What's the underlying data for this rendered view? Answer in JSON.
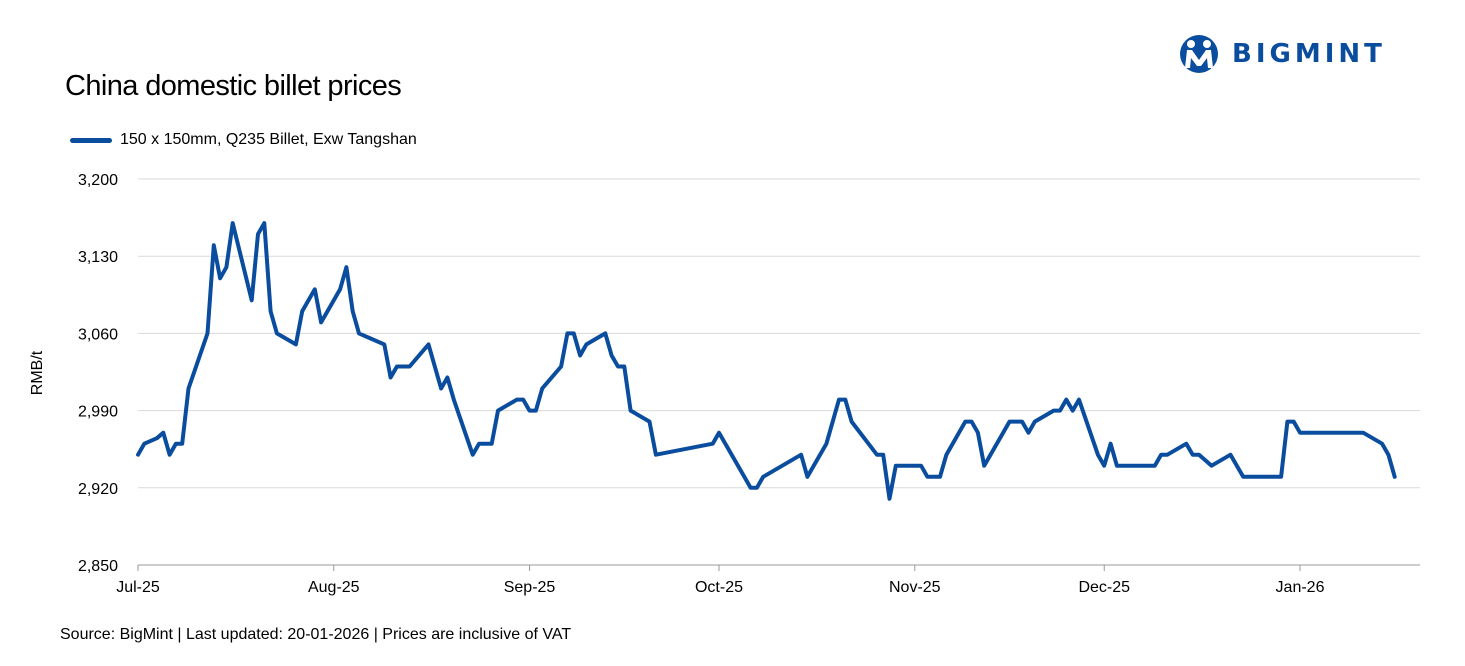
{
  "logo": {
    "text": "BIGMINT",
    "color": "#0a4d9e"
  },
  "source": "Source: BigMint | Last updated: 20-01-2026 | Prices are inclusive of VAT",
  "chart_data": {
    "type": "line",
    "title": "China domestic billet prices",
    "ylabel": "RMB/t",
    "xlabel": "",
    "ylim": [
      2850,
      3200
    ],
    "y_ticks": [
      2850,
      2920,
      2990,
      3060,
      3130,
      3200
    ],
    "y_tick_labels": [
      "2,850",
      "2,920",
      "2,990",
      "3,060",
      "3,130",
      "3,200"
    ],
    "x_ticks": [
      {
        "label": "Jul-25",
        "date": "2025-07-01"
      },
      {
        "label": "Aug-25",
        "date": "2025-08-01"
      },
      {
        "label": "Sep-25",
        "date": "2025-09-01"
      },
      {
        "label": "Oct-25",
        "date": "2025-10-01"
      },
      {
        "label": "Nov-25",
        "date": "2025-11-01"
      },
      {
        "label": "Dec-25",
        "date": "2025-12-01"
      },
      {
        "label": "Jan-26",
        "date": "2026-01-01"
      }
    ],
    "x_range": [
      "2025-07-01",
      "2026-01-20"
    ],
    "grid": "horizontal",
    "legend_position": "top-left",
    "series": [
      {
        "name": "150 x 150mm, Q235 Billet, Exw Tangshan",
        "color": "#0a4d9e",
        "points": [
          [
            "2025-07-01",
            2950
          ],
          [
            "2025-07-02",
            2960
          ],
          [
            "2025-07-04",
            2965
          ],
          [
            "2025-07-05",
            2970
          ],
          [
            "2025-07-06",
            2950
          ],
          [
            "2025-07-07",
            2960
          ],
          [
            "2025-07-08",
            2960
          ],
          [
            "2025-07-09",
            3010
          ],
          [
            "2025-07-12",
            3060
          ],
          [
            "2025-07-13",
            3140
          ],
          [
            "2025-07-14",
            3110
          ],
          [
            "2025-07-15",
            3120
          ],
          [
            "2025-07-16",
            3160
          ],
          [
            "2025-07-19",
            3090
          ],
          [
            "2025-07-20",
            3150
          ],
          [
            "2025-07-21",
            3160
          ],
          [
            "2025-07-22",
            3080
          ],
          [
            "2025-07-23",
            3060
          ],
          [
            "2025-07-26",
            3050
          ],
          [
            "2025-07-27",
            3080
          ],
          [
            "2025-07-29",
            3100
          ],
          [
            "2025-07-30",
            3070
          ],
          [
            "2025-08-01",
            3090
          ],
          [
            "2025-08-02",
            3100
          ],
          [
            "2025-08-03",
            3120
          ],
          [
            "2025-08-04",
            3080
          ],
          [
            "2025-08-05",
            3060
          ],
          [
            "2025-08-09",
            3050
          ],
          [
            "2025-08-10",
            3020
          ],
          [
            "2025-08-11",
            3030
          ],
          [
            "2025-08-13",
            3030
          ],
          [
            "2025-08-16",
            3050
          ],
          [
            "2025-08-18",
            3010
          ],
          [
            "2025-08-19",
            3020
          ],
          [
            "2025-08-20",
            3000
          ],
          [
            "2025-08-23",
            2950
          ],
          [
            "2025-08-24",
            2960
          ],
          [
            "2025-08-26",
            2960
          ],
          [
            "2025-08-27",
            2990
          ],
          [
            "2025-08-30",
            3000
          ],
          [
            "2025-08-31",
            3000
          ],
          [
            "2025-09-01",
            2990
          ],
          [
            "2025-09-02",
            2990
          ],
          [
            "2025-09-03",
            3010
          ],
          [
            "2025-09-06",
            3030
          ],
          [
            "2025-09-07",
            3060
          ],
          [
            "2025-09-08",
            3060
          ],
          [
            "2025-09-09",
            3040
          ],
          [
            "2025-09-10",
            3050
          ],
          [
            "2025-09-13",
            3060
          ],
          [
            "2025-09-14",
            3040
          ],
          [
            "2025-09-15",
            3030
          ],
          [
            "2025-09-16",
            3030
          ],
          [
            "2025-09-17",
            2990
          ],
          [
            "2025-09-20",
            2980
          ],
          [
            "2025-09-21",
            2950
          ],
          [
            "2025-09-30",
            2960
          ],
          [
            "2025-10-01",
            2970
          ],
          [
            "2025-10-04",
            2940
          ],
          [
            "2025-10-06",
            2920
          ],
          [
            "2025-10-07",
            2920
          ],
          [
            "2025-10-08",
            2930
          ],
          [
            "2025-10-14",
            2950
          ],
          [
            "2025-10-15",
            2930
          ],
          [
            "2025-10-18",
            2960
          ],
          [
            "2025-10-20",
            3000
          ],
          [
            "2025-10-21",
            3000
          ],
          [
            "2025-10-22",
            2980
          ],
          [
            "2025-10-26",
            2950
          ],
          [
            "2025-10-27",
            2950
          ],
          [
            "2025-10-28",
            2910
          ],
          [
            "2025-10-29",
            2940
          ],
          [
            "2025-11-01",
            2940
          ],
          [
            "2025-11-02",
            2940
          ],
          [
            "2025-11-03",
            2930
          ],
          [
            "2025-11-05",
            2930
          ],
          [
            "2025-11-06",
            2950
          ],
          [
            "2025-11-09",
            2980
          ],
          [
            "2025-11-10",
            2980
          ],
          [
            "2025-11-11",
            2970
          ],
          [
            "2025-11-12",
            2940
          ],
          [
            "2025-11-16",
            2980
          ],
          [
            "2025-11-18",
            2980
          ],
          [
            "2025-11-19",
            2970
          ],
          [
            "2025-11-20",
            2980
          ],
          [
            "2025-11-23",
            2990
          ],
          [
            "2025-11-24",
            2990
          ],
          [
            "2025-11-25",
            3000
          ],
          [
            "2025-11-26",
            2990
          ],
          [
            "2025-11-27",
            3000
          ],
          [
            "2025-11-30",
            2950
          ],
          [
            "2025-12-01",
            2940
          ],
          [
            "2025-12-02",
            2960
          ],
          [
            "2025-12-03",
            2940
          ],
          [
            "2025-12-09",
            2940
          ],
          [
            "2025-12-10",
            2950
          ],
          [
            "2025-12-11",
            2950
          ],
          [
            "2025-12-14",
            2960
          ],
          [
            "2025-12-15",
            2950
          ],
          [
            "2025-12-16",
            2950
          ],
          [
            "2025-12-18",
            2940
          ],
          [
            "2025-12-21",
            2950
          ],
          [
            "2025-12-23",
            2930
          ],
          [
            "2025-12-29",
            2930
          ],
          [
            "2025-12-30",
            2980
          ],
          [
            "2025-12-31",
            2980
          ],
          [
            "2026-01-01",
            2970
          ],
          [
            "2026-01-11",
            2970
          ],
          [
            "2026-01-14",
            2960
          ],
          [
            "2026-01-15",
            2950
          ],
          [
            "2026-01-16",
            2930
          ]
        ]
      }
    ]
  }
}
